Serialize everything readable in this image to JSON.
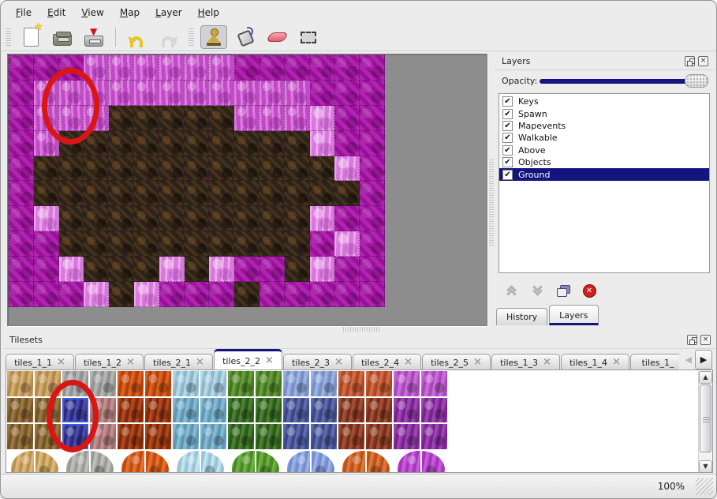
{
  "menubar": {
    "items": [
      "File",
      "Edit",
      "View",
      "Map",
      "Layer",
      "Help"
    ]
  },
  "toolbar": {
    "buttons": [
      {
        "icon": "new-file"
      },
      {
        "icon": "open-folder"
      },
      {
        "icon": "save"
      },
      {
        "icon": "undo",
        "sep_before": true
      },
      {
        "icon": "redo"
      },
      {
        "icon": "stamp-tool",
        "handle_before": true,
        "active": true
      },
      {
        "icon": "fill-tool"
      },
      {
        "icon": "eraser-tool"
      },
      {
        "icon": "rect-select-tool"
      }
    ]
  },
  "map": {
    "canvas_color": "#8d8d8d",
    "tile_legend": {
      "D": "dark-magenta-scale",
      "P": "pink-rock",
      "Q": "bright-pink-rock",
      "B": "dark-brown-rock"
    },
    "grid": [
      "DDDPPPPPPDDDDDD",
      "DPPPPPPPPPPPDDD",
      "DPPPBBBBBPPPQDD",
      "DPBBBBBBBBBBQDD",
      "DBBBBBBBBBBBBQD",
      "DBBBBBBBBBBBBBD",
      "DQBBBBBBBBBBQDD",
      "DDBBBBBBBBBBDQD",
      "DDQBBBQBQDDBQDD",
      "DDDQBQDDDBDDDDD"
    ],
    "annotation_circle_color": "#d81616"
  },
  "layers_panel": {
    "title": "Layers",
    "opacity_label": "Opacity:",
    "opacity_value_percent": 100,
    "accent_color": "#14147e",
    "layers": [
      {
        "label": "Keys",
        "checked": true,
        "selected": false
      },
      {
        "label": "Spawn",
        "checked": true,
        "selected": false
      },
      {
        "label": "Mapevents",
        "checked": true,
        "selected": false
      },
      {
        "label": "Walkable",
        "checked": true,
        "selected": false
      },
      {
        "label": "Above",
        "checked": true,
        "selected": false
      },
      {
        "label": "Objects",
        "checked": true,
        "selected": false
      },
      {
        "label": "Ground",
        "checked": true,
        "selected": true
      }
    ],
    "bottom_tabs": [
      {
        "label": "History",
        "active": false
      },
      {
        "label": "Layers",
        "active": true
      }
    ]
  },
  "tilesets_panel": {
    "title": "Tilesets",
    "tabs": [
      {
        "label": "tiles_1_1",
        "active": false
      },
      {
        "label": "tiles_1_2",
        "active": false
      },
      {
        "label": "tiles_2_1",
        "active": false
      },
      {
        "label": "tiles_2_2",
        "active": true
      },
      {
        "label": "tiles_2_3",
        "active": false
      },
      {
        "label": "tiles_2_4",
        "active": false
      },
      {
        "label": "tiles_2_5",
        "active": false
      },
      {
        "label": "tiles_1_3",
        "active": false
      },
      {
        "label": "tiles_1_4",
        "active": false
      },
      {
        "label": "tiles_1_",
        "active": false,
        "truncated": true
      }
    ],
    "tile_groups": [
      {
        "name": "sand",
        "top": "#cea158",
        "mid": "#8a6228",
        "blob": "#d9ab60"
      },
      {
        "name": "rock",
        "top": "#a9a9a7",
        "mid": "#b87e7e",
        "blob": "#b3b3af"
      },
      {
        "name": "lava",
        "top": "#d44b04",
        "mid": "#9d2d02",
        "blob": "#e0570e"
      },
      {
        "name": "ice",
        "top": "#a5d4e8",
        "mid": "#6fb0d0",
        "blob": "#b5e2f2"
      },
      {
        "name": "vine",
        "top": "#4e8c20",
        "mid": "#2f6a16",
        "blob": "#55a226"
      },
      {
        "name": "crystal",
        "top": "#8ba6e2",
        "mid": "#44549f",
        "blob": "#88a4ea"
      },
      {
        "name": "ember",
        "top": "#c95327",
        "mid": "#8f3317",
        "blob": "#d96119"
      },
      {
        "name": "web",
        "top": "#c454d6",
        "mid": "#8e27a8",
        "blob": "#bf3fd8"
      }
    ],
    "selected_tile": {
      "col": 2,
      "rows": [
        1,
        2
      ],
      "color": "#30309a",
      "highlight_color": "#3c5ae0"
    }
  },
  "status_bar": {
    "zoom_level": "100%"
  }
}
